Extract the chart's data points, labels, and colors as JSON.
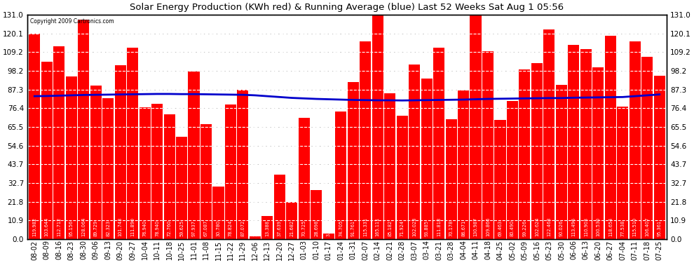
{
  "title": "Solar Energy Production (KWh red) & Running Average (blue) Last 52 Weeks Sat Aug 1 05:56",
  "copyright": "Copyright 2009 Cartronics.com",
  "bar_color": "#ff0000",
  "avg_line_color": "#0000cc",
  "background_color": "#ffffff",
  "plot_bg_color": "#ffffff",
  "grid_color": "#aaaaaa",
  "categories": [
    "08-02",
    "08-09",
    "08-16",
    "08-23",
    "08-30",
    "09-06",
    "09-13",
    "09-20",
    "09-27",
    "10-04",
    "10-11",
    "10-18",
    "10-25",
    "11-01",
    "11-08",
    "11-15",
    "11-22",
    "11-29",
    "12-06",
    "12-13",
    "12-20",
    "12-27",
    "01-03",
    "01-10",
    "01-17",
    "01-24",
    "01-31",
    "02-07",
    "02-14",
    "02-21",
    "02-28",
    "03-07",
    "03-14",
    "03-21",
    "03-28",
    "04-04",
    "04-11",
    "04-18",
    "04-25",
    "05-02",
    "05-09",
    "05-16",
    "05-23",
    "05-30",
    "06-06",
    "06-13",
    "06-20",
    "06-27",
    "07-04",
    "07-11",
    "07-18",
    "07-25"
  ],
  "bar_values": [
    119.982,
    103.644,
    112.712,
    95.156,
    128.064,
    89.729,
    82.323,
    101.743,
    111.89,
    76.94,
    78.94,
    72.76,
    59.625,
    97.937,
    67.087,
    30.78,
    78.824,
    87.072,
    1.65,
    13.388,
    37.639,
    21.682,
    70.725,
    28.698,
    3.45,
    74.705,
    91.761,
    115.331,
    165.111,
    85.182,
    71.924,
    102.023,
    93.885,
    111.818,
    70.178,
    86.671,
    130.987,
    109.866,
    69.463,
    80.49,
    99.226,
    102.624,
    122.463,
    90.026,
    113.496,
    110.903,
    100.53,
    118.654,
    77.538,
    115.51,
    106.407,
    95.361
  ],
  "avg_values": [
    83.5,
    83.6,
    83.8,
    84.0,
    84.2,
    84.3,
    84.4,
    84.5,
    84.6,
    84.7,
    84.8,
    84.8,
    84.7,
    84.7,
    84.6,
    84.5,
    84.4,
    84.3,
    84.0,
    83.5,
    83.0,
    82.5,
    82.2,
    81.9,
    81.7,
    81.5,
    81.3,
    81.2,
    81.1,
    81.1,
    81.0,
    81.1,
    81.2,
    81.3,
    81.4,
    81.5,
    81.7,
    81.9,
    82.0,
    82.1,
    82.2,
    82.3,
    82.4,
    82.4,
    82.6,
    82.7,
    82.8,
    82.9,
    83.0,
    83.5,
    84.0,
    84.5
  ],
  "yticks": [
    0.0,
    10.9,
    21.8,
    32.7,
    43.7,
    54.6,
    65.5,
    76.4,
    87.3,
    98.2,
    109.2,
    120.1,
    131.0
  ],
  "ymax": 131.0,
  "ymin": 0.0,
  "label_fontsize": 4.8,
  "tick_fontsize": 7.5,
  "title_fontsize": 9.5
}
